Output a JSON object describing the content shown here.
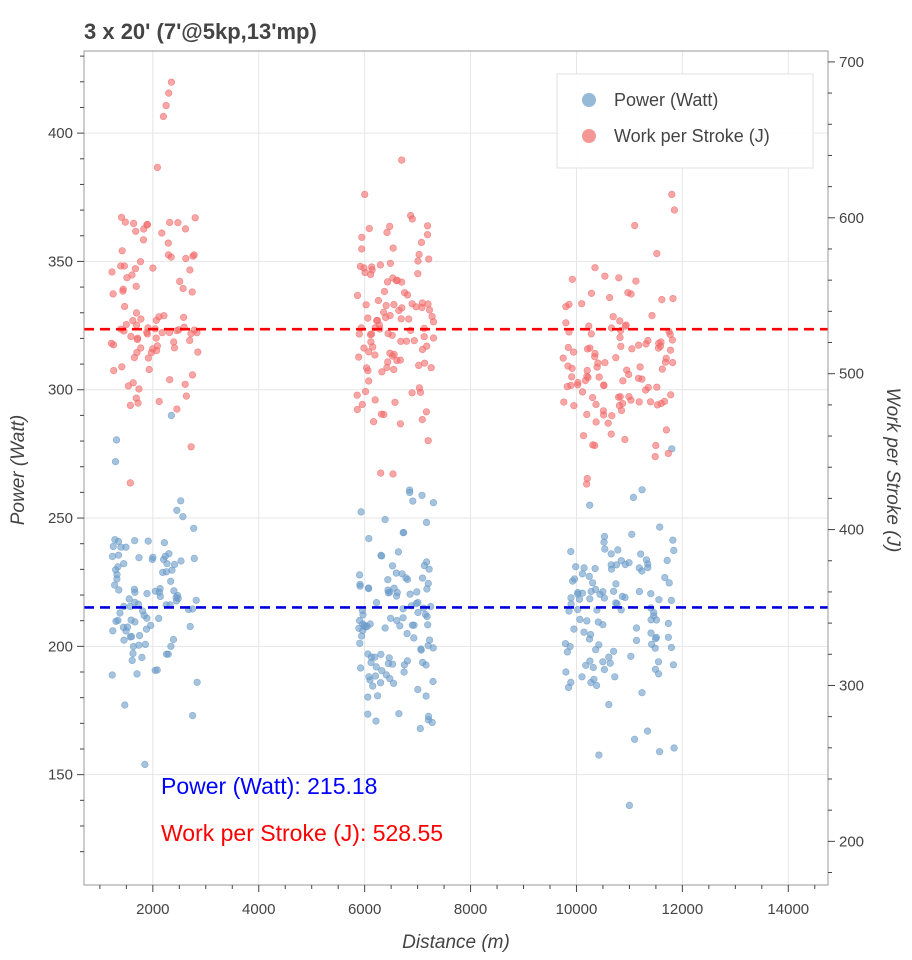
{
  "chart_data": {
    "type": "scatter",
    "title": "3 x 20' (7'@5kp,13'mp)",
    "xlabel": "Distance (m)",
    "ylabel": "Power (Watt)",
    "y2label": "Work per Stroke (J)",
    "xlim": [
      700,
      14750
    ],
    "ylim": [
      107,
      432
    ],
    "y2lim": [
      172,
      707
    ],
    "xticks": [
      2000,
      4000,
      6000,
      8000,
      10000,
      12000,
      14000
    ],
    "yticks": [
      150,
      200,
      250,
      300,
      350,
      400
    ],
    "y2ticks": [
      200,
      300,
      400,
      500,
      600,
      700
    ],
    "grid": true,
    "legend_position": "top-right",
    "series": [
      {
        "name": "Power (Watt)",
        "axis": "left",
        "color": "#6b9bc8",
        "clusters": [
          {
            "x_range": [
              1200,
              2850
            ],
            "mean": 220,
            "sd": 17,
            "count": 95,
            "seed": 11
          },
          {
            "x_range": [
              5850,
              7300
            ],
            "mean": 213,
            "sd": 19,
            "count": 110,
            "seed": 23
          },
          {
            "x_range": [
              9750,
              11850
            ],
            "mean": 210,
            "sd": 21,
            "count": 115,
            "seed": 37
          }
        ],
        "extra_points": [
          [
            1850,
            154
          ],
          [
            2350,
            290
          ],
          [
            2750,
            173
          ],
          [
            11000,
            138
          ],
          [
            7050,
            168
          ],
          [
            10250,
            255
          ],
          [
            6850,
            260
          ],
          [
            11800,
            277
          ],
          [
            9800,
            190
          ],
          [
            9850,
            184
          ]
        ]
      },
      {
        "name": "Work per Stroke (J)",
        "axis": "right",
        "color": "#f26b6b",
        "clusters": [
          {
            "x_range": [
              1200,
              2850
            ],
            "mean": 535,
            "sd": 33,
            "count": 95,
            "seed": 51
          },
          {
            "x_range": [
              5850,
              7300
            ],
            "mean": 530,
            "sd": 36,
            "count": 110,
            "seed": 63
          },
          {
            "x_range": [
              9750,
              11850
            ],
            "mean": 508,
            "sd": 34,
            "count": 110,
            "seed": 77
          }
        ],
        "extra_points": [
          [
            2350,
            687
          ],
          [
            2300,
            680
          ],
          [
            2200,
            665
          ],
          [
            2250,
            672
          ],
          [
            6700,
            637
          ],
          [
            6000,
            615
          ],
          [
            11800,
            615
          ],
          [
            9800,
            543
          ],
          [
            9750,
            510
          ],
          [
            10350,
            568
          ],
          [
            11100,
            595
          ],
          [
            11850,
            605
          ],
          [
            7200,
            457
          ],
          [
            2800,
            600
          ]
        ]
      }
    ],
    "reference_lines": [
      {
        "series": "Power (Watt)",
        "axis": "left",
        "value": 215.18,
        "color": "#0000dd",
        "dash": "dashed"
      },
      {
        "series": "Work per Stroke (J)",
        "axis": "right",
        "value": 528.55,
        "color": "#ff0000",
        "dash": "dashed"
      }
    ],
    "annotations": [
      {
        "text": "Power (Watt): 215.18",
        "color": "#0000ff"
      },
      {
        "text": "Work per Stroke (J): 528.55",
        "color": "#ff0000"
      }
    ]
  }
}
